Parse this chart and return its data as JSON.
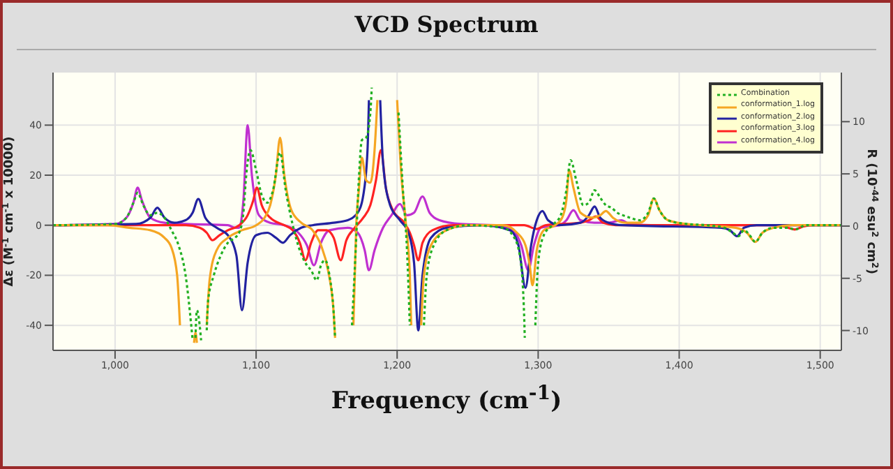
{
  "chart_data": {
    "type": "line",
    "title": "VCD Spectrum",
    "xlabel": "Frequency (cm$^{-1}$)",
    "ylabel": "Δε (M$^{-1}$ cm$^{-1}$ x 10000)",
    "y2label": "R (10$^{-44}$ esu$^{2}$ cm$^{2}$)",
    "xlim": [
      956,
      1515
    ],
    "xticks": [
      {
        "value": 1000,
        "label": "1,000"
      },
      {
        "value": 1100,
        "label": "1,100"
      },
      {
        "value": 1200,
        "label": "1,200"
      },
      {
        "value": 1300,
        "label": "1,300"
      },
      {
        "value": 1400,
        "label": "1,400"
      },
      {
        "value": 1500,
        "label": "1,500"
      }
    ],
    "ylim": [
      -50,
      61
    ],
    "yticks": [
      -40,
      -20,
      0,
      20,
      40
    ],
    "y2lim": [
      -11.9,
      14.7
    ],
    "y2ticks": [
      -10,
      -5,
      0,
      5,
      10
    ],
    "grid": true,
    "legend": "top right",
    "marker": "none",
    "series": [
      {
        "name": "Combination",
        "color": "#22b022",
        "line_style": "dotted",
        "x": [
          956,
          1000,
          1008,
          1013,
          1016,
          1020,
          1025,
          1030,
          1035,
          1040,
          1045,
          1050,
          1054,
          1055,
          1056,
          1057,
          1058,
          1060,
          1061,
          1062,
          1064,
          1065,
          1066,
          1070,
          1075,
          1080,
          1085,
          1088,
          1091,
          1093,
          1096,
          1100,
          1104,
          1108,
          1112,
          1117,
          1121,
          1126,
          1131,
          1136,
          1139,
          1143,
          1146,
          1149,
          1152,
          1155,
          1156,
          1157,
          1167,
          1168,
          1171,
          1173,
          1175,
          1178,
          1181,
          1182,
          1183,
          1200,
          1201,
          1204,
          1207,
          1209,
          1210,
          1218,
          1219,
          1221,
          1226,
          1235,
          1250,
          1275,
          1282,
          1287,
          1290,
          1290.5,
          1291,
          1297,
          1298,
          1300,
          1304,
          1310,
          1316,
          1320,
          1323,
          1327,
          1332,
          1336,
          1340,
          1344,
          1348,
          1352,
          1356,
          1360,
          1365,
          1372,
          1378,
          1382,
          1386,
          1392,
          1405,
          1420,
          1432,
          1438,
          1442,
          1446,
          1450,
          1454,
          1459,
          1467,
          1477,
          1482,
          1490,
          1515
        ],
        "values": [
          0,
          0.5,
          3,
          9,
          13,
          8,
          4,
          5,
          3,
          -2,
          -8,
          -20,
          -40,
          -46,
          null,
          -45,
          -34,
          -40,
          -46,
          null,
          null,
          -42,
          -30,
          -20,
          -12,
          -7,
          -5,
          -3,
          5,
          20,
          30,
          22,
          12,
          9,
          14,
          29,
          14,
          0,
          -10,
          -16,
          -18,
          -22,
          -16,
          -14,
          -20,
          -35,
          -45,
          null,
          null,
          -40,
          -5,
          20,
          34,
          35,
          45,
          55,
          null,
          null,
          45,
          15,
          -10,
          -40,
          null,
          null,
          -40,
          -20,
          -8,
          -2,
          0,
          -1,
          -4,
          -12,
          -35,
          -45,
          null,
          null,
          -40,
          -15,
          -4,
          0,
          4,
          14,
          26,
          18,
          8,
          9,
          14,
          11,
          8,
          7,
          5,
          4,
          3,
          2,
          5,
          10.7,
          6,
          2,
          0.5,
          0,
          -1,
          -3,
          -4.4,
          -2,
          -4,
          -6.7,
          -3,
          -1,
          -1,
          -1.7,
          0,
          0
        ]
      },
      {
        "name": "conformation_1.log",
        "color": "#f5a623",
        "line_style": "solid",
        "x": [
          956,
          995,
          1010,
          1025,
          1035,
          1040,
          1044,
          1046,
          1047,
          1055,
          1056,
          1057,
          1058,
          1059,
          1064,
          1065,
          1067,
          1072,
          1080,
          1090,
          1100,
          1106,
          1110,
          1114,
          1117,
          1120,
          1125,
          1132,
          1140,
          1146,
          1151,
          1155,
          1156,
          1157,
          1167,
          1169,
          1171,
          1173,
          1175,
          1178,
          1181,
          1184,
          1186,
          1187,
          1199,
          1200,
          1203,
          1206,
          1209,
          1210,
          1211,
          1216,
          1217,
          1219,
          1224,
          1235,
          1250,
          1275,
          1285,
          1291,
          1294,
          1296,
          1299,
          1304,
          1312,
          1317,
          1320,
          1322,
          1325,
          1330,
          1338,
          1344,
          1348,
          1353,
          1362,
          1372,
          1378,
          1382,
          1386,
          1392,
          1405,
          1415,
          1440,
          1448,
          1454,
          1459,
          1467,
          1480,
          1515
        ],
        "values": [
          0,
          0,
          -1,
          -2,
          -5,
          -9,
          -20,
          -40,
          null,
          null,
          -47,
          -43,
          -47,
          null,
          null,
          -40,
          -22,
          -10,
          -5,
          -2,
          0,
          3,
          8,
          20,
          35,
          20,
          6,
          1,
          -2,
          -8,
          -18,
          -35,
          -45,
          null,
          null,
          -40,
          0,
          15,
          27,
          18,
          17,
          30,
          50,
          null,
          null,
          50,
          20,
          2,
          -20,
          -40,
          null,
          null,
          -40,
          -20,
          -8,
          -2,
          0,
          0,
          -3,
          -8,
          -16,
          -24,
          -10,
          -2,
          0,
          3,
          10,
          22,
          15,
          5,
          3,
          4,
          5.7,
          3,
          1,
          1,
          4,
          10.7,
          6,
          2,
          0.5,
          0,
          -1,
          -3,
          -6.7,
          -3,
          -1,
          0,
          0
        ]
      },
      {
        "name": "conformation_2.log",
        "color": "#2222a0",
        "line_style": "solid",
        "x": [
          956,
          1015,
          1025,
          1030,
          1035,
          1042,
          1050,
          1055,
          1059,
          1064,
          1072,
          1080,
          1086,
          1090,
          1094,
          1100,
          1108,
          1114,
          1119,
          1124,
          1132,
          1140,
          1155,
          1165,
          1172,
          1176,
          1179,
          1180,
          1181,
          1187,
          1188,
          1190,
          1195,
          1202,
          1208,
          1212,
          1215,
          1218,
          1224,
          1235,
          1260,
          1280,
          1286,
          1291,
          1295,
          1299,
          1303,
          1307,
          1315,
          1330,
          1336,
          1340,
          1344,
          1350,
          1360,
          1430,
          1436,
          1441,
          1446,
          1455,
          1515
        ],
        "values": [
          0,
          0.5,
          3,
          7,
          3,
          1,
          2,
          5,
          10.5,
          3,
          -1,
          -4,
          -12,
          -34,
          -15,
          -4,
          -3,
          -5,
          -7,
          -4,
          -1,
          0,
          1,
          2,
          5,
          12,
          30,
          50,
          null,
          null,
          50,
          25,
          8,
          2,
          -3,
          -15,
          -42,
          -20,
          -5,
          -1,
          0,
          -2,
          -8,
          -25,
          -8,
          2,
          5.7,
          2,
          0,
          1,
          4,
          7.5,
          3,
          1,
          0,
          -1,
          -2,
          -4.4,
          -1,
          0,
          0
        ]
      },
      {
        "name": "conformation_3.log",
        "color": "#ff2222",
        "line_style": "solid",
        "x": [
          956,
          1050,
          1060,
          1065,
          1069,
          1074,
          1080,
          1088,
          1094,
          1098,
          1100.5,
          1104,
          1110,
          1120,
          1126,
          1131,
          1135,
          1139,
          1144,
          1150,
          1155,
          1160,
          1164,
          1170,
          1176,
          1181,
          1185,
          1188.5,
          1192,
          1197,
          1205,
          1209,
          1212,
          1215,
          1218,
          1225,
          1240,
          1290,
          1299,
          1305,
          1330,
          1336,
          1341,
          1346,
          1355,
          1470,
          1477,
          1482,
          1488,
          1495,
          1515
        ],
        "values": [
          0,
          0,
          -1,
          -3,
          -6,
          -4,
          -2,
          0,
          4,
          10,
          15,
          8,
          3,
          0,
          -2,
          -7,
          -14,
          -7,
          -2,
          -2,
          -5,
          -14,
          -6,
          -1,
          3,
          8,
          18,
          30,
          15,
          6,
          1,
          -3,
          -8,
          -14,
          -7,
          -2,
          0,
          0,
          -1.5,
          0,
          1,
          2,
          3.5,
          1,
          0,
          0,
          -1,
          -1.7,
          -0.5,
          0,
          0
        ]
      },
      {
        "name": "conformation_4.log",
        "color": "#c030d0",
        "line_style": "solid",
        "x": [
          956,
          1000,
          1008,
          1013,
          1016,
          1019,
          1025,
          1035,
          1050,
          1080,
          1085,
          1088,
          1091,
          1094,
          1097,
          1102,
          1110,
          1120,
          1130,
          1136,
          1141,
          1146,
          1152,
          1165,
          1172,
          1177,
          1180,
          1184,
          1190,
          1196,
          1202,
          1207,
          1212,
          1218,
          1223,
          1230,
          1245,
          1270,
          1282,
          1288,
          1293,
          1297,
          1302,
          1315,
          1320,
          1325,
          1330,
          1340,
          1350,
          1359,
          1365,
          1380,
          1515
        ],
        "values": [
          0,
          0.5,
          3,
          9,
          15,
          10,
          3,
          1,
          0.5,
          0,
          -1,
          -1,
          10,
          40,
          20,
          4,
          1,
          0,
          -3,
          -8,
          -16,
          -7,
          -2,
          -1,
          -3,
          -10,
          -18,
          -10,
          -1,
          4,
          8.5,
          4,
          5,
          11.5,
          5,
          2,
          0.5,
          0,
          -2,
          -8,
          -18,
          -8,
          -1,
          0,
          2,
          6,
          2,
          1,
          1,
          2,
          0.5,
          0,
          0
        ]
      }
    ]
  }
}
